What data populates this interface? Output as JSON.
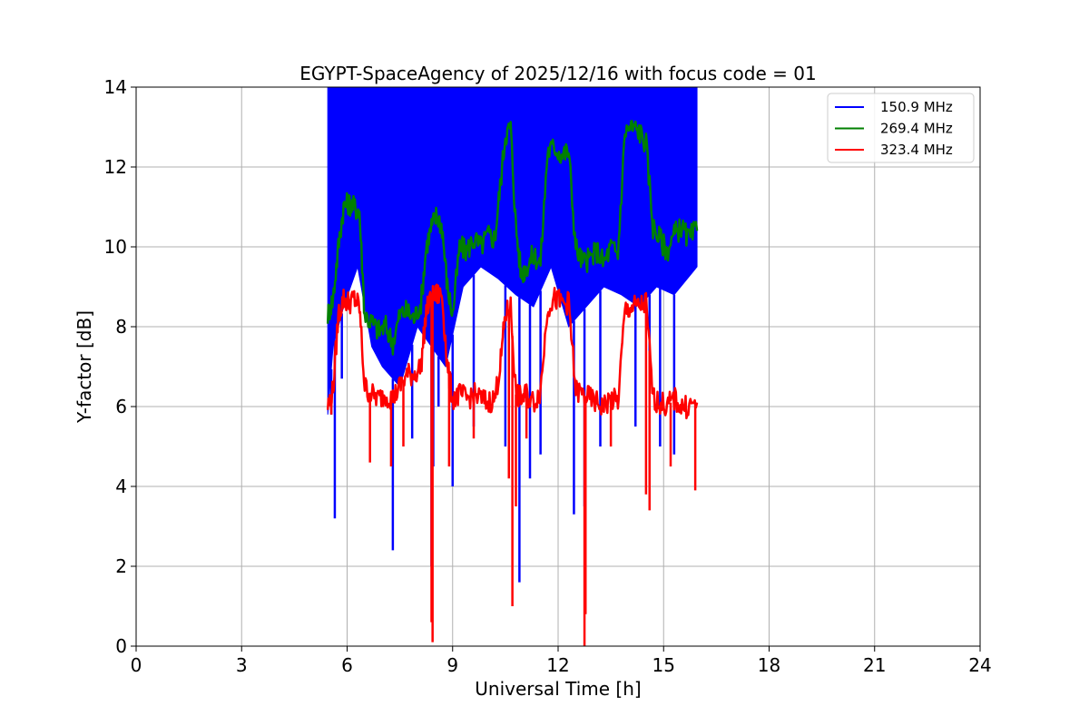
{
  "chart_data": {
    "type": "line",
    "title": "EGYPT-SpaceAgency of 2025/12/16 with focus code = 01",
    "xlabel": "Universal Time [h]",
    "ylabel": "Y-factor [dB]",
    "xlim": [
      0,
      24
    ],
    "ylim": [
      0,
      14
    ],
    "xticks": [
      0,
      3,
      6,
      9,
      12,
      15,
      18,
      21,
      24
    ],
    "yticks": [
      0,
      2,
      4,
      6,
      8,
      10,
      12,
      14
    ],
    "grid": true,
    "legend_position": "top-right",
    "series": [
      {
        "name": "150.9 MHz",
        "color": "#0000ff",
        "band": {
          "x": [
            5.45,
            5.6,
            5.9,
            6.3,
            6.7,
            7.0,
            7.5,
            8.0,
            8.4,
            8.8,
            9.3,
            9.8,
            10.3,
            10.8,
            11.3,
            11.8,
            12.3,
            12.8,
            13.3,
            13.8,
            14.3,
            14.8,
            15.3,
            15.95
          ],
          "low": [
            5.8,
            7.5,
            8.5,
            9.5,
            7.5,
            7.0,
            6.5,
            8.0,
            7.5,
            7.0,
            9.0,
            9.5,
            9.2,
            8.8,
            8.5,
            9.5,
            8.0,
            8.5,
            9.0,
            8.8,
            8.5,
            9.0,
            8.8,
            9.5
          ],
          "high": [
            14,
            14,
            14,
            14,
            14,
            14,
            14,
            14,
            14,
            14,
            14,
            14,
            14,
            14,
            14,
            14,
            14,
            14,
            14,
            14,
            14,
            14,
            14,
            14
          ]
        },
        "spikes": [
          [
            5.55,
            5.8
          ],
          [
            5.65,
            3.2
          ],
          [
            5.85,
            6.7
          ],
          [
            7.3,
            2.4
          ],
          [
            7.85,
            5.2
          ],
          [
            8.4,
            2.0
          ],
          [
            8.45,
            4.5
          ],
          [
            8.6,
            6.0
          ],
          [
            9.0,
            4.0
          ],
          [
            9.6,
            5.5
          ],
          [
            10.5,
            5.0
          ],
          [
            10.9,
            1.6
          ],
          [
            11.2,
            4.2
          ],
          [
            11.5,
            4.8
          ],
          [
            12.45,
            3.3
          ],
          [
            12.75,
            3.5
          ],
          [
            13.2,
            5.0
          ],
          [
            14.2,
            5.5
          ],
          [
            14.6,
            4.0
          ],
          [
            14.9,
            5.0
          ],
          [
            15.3,
            4.8
          ]
        ]
      },
      {
        "name": "269.4 MHz",
        "color": "#008000",
        "x": [
          5.45,
          5.6,
          5.75,
          5.9,
          6.05,
          6.2,
          6.35,
          6.5,
          6.7,
          6.9,
          7.1,
          7.3,
          7.5,
          7.7,
          7.9,
          8.1,
          8.25,
          8.4,
          8.55,
          8.7,
          8.85,
          9.0,
          9.2,
          9.4,
          9.6,
          9.8,
          10.0,
          10.2,
          10.35,
          10.5,
          10.65,
          10.8,
          10.95,
          11.1,
          11.3,
          11.5,
          11.7,
          11.9,
          12.1,
          12.3,
          12.5,
          12.7,
          12.9,
          13.1,
          13.3,
          13.5,
          13.7,
          13.9,
          14.1,
          14.3,
          14.5,
          14.7,
          14.9,
          15.1,
          15.3,
          15.5,
          15.7,
          15.95
        ],
        "y": [
          8.3,
          8.7,
          10.0,
          11.0,
          11.1,
          11.0,
          10.9,
          8.3,
          8.1,
          7.9,
          8.0,
          7.6,
          8.3,
          8.4,
          8.2,
          8.6,
          10.0,
          10.5,
          10.8,
          10.5,
          9.0,
          8.3,
          10.0,
          9.9,
          10.2,
          10.0,
          10.3,
          10.2,
          11.5,
          12.8,
          13.0,
          10.5,
          9.3,
          9.5,
          9.8,
          9.6,
          12.4,
          12.5,
          12.3,
          12.4,
          10.0,
          9.6,
          9.7,
          9.9,
          9.6,
          10.0,
          9.8,
          12.9,
          13.0,
          12.9,
          12.6,
          10.5,
          10.2,
          9.9,
          10.3,
          10.5,
          10.2,
          10.4
        ]
      },
      {
        "name": "323.4 MHz",
        "color": "#ff0000",
        "x": [
          5.45,
          5.6,
          5.75,
          5.9,
          6.05,
          6.2,
          6.35,
          6.5,
          6.7,
          6.9,
          7.1,
          7.3,
          7.5,
          7.7,
          7.9,
          8.1,
          8.25,
          8.4,
          8.55,
          8.7,
          8.85,
          9.0,
          9.2,
          9.4,
          9.6,
          9.8,
          10.0,
          10.2,
          10.35,
          10.5,
          10.65,
          10.8,
          10.95,
          11.1,
          11.3,
          11.5,
          11.7,
          11.9,
          12.1,
          12.3,
          12.5,
          12.7,
          12.9,
          13.1,
          13.3,
          13.5,
          13.7,
          13.9,
          14.1,
          14.3,
          14.5,
          14.7,
          14.9,
          15.1,
          15.3,
          15.5,
          15.7,
          15.95
        ],
        "y": [
          6.0,
          6.4,
          8.3,
          8.7,
          8.6,
          8.7,
          8.5,
          6.5,
          6.3,
          6.2,
          6.3,
          6.2,
          6.5,
          6.8,
          6.8,
          7.0,
          8.4,
          8.7,
          8.8,
          8.8,
          7.0,
          6.2,
          6.3,
          6.2,
          6.3,
          6.2,
          6.1,
          6.2,
          7.0,
          8.3,
          8.5,
          6.3,
          6.2,
          6.3,
          6.1,
          6.4,
          8.5,
          8.7,
          8.6,
          8.6,
          6.4,
          6.3,
          6.2,
          6.1,
          6.0,
          6.2,
          6.1,
          8.4,
          8.5,
          8.5,
          8.6,
          6.2,
          6.1,
          6.0,
          6.2,
          6.0,
          6.0,
          6.1
        ],
        "spikes": [
          [
            5.55,
            5.8
          ],
          [
            6.65,
            4.6
          ],
          [
            7.25,
            4.5
          ],
          [
            7.6,
            5.0
          ],
          [
            8.4,
            0.6
          ],
          [
            8.43,
            0.1
          ],
          [
            8.9,
            4.5
          ],
          [
            9.6,
            5.2
          ],
          [
            10.6,
            4.2
          ],
          [
            10.7,
            1.0
          ],
          [
            10.8,
            3.5
          ],
          [
            11.1,
            5.2
          ],
          [
            12.75,
            0.0
          ],
          [
            12.78,
            0.8
          ],
          [
            13.5,
            5.0
          ],
          [
            14.5,
            3.8
          ],
          [
            14.6,
            3.4
          ],
          [
            15.2,
            4.5
          ],
          [
            15.9,
            3.9
          ]
        ]
      }
    ]
  }
}
